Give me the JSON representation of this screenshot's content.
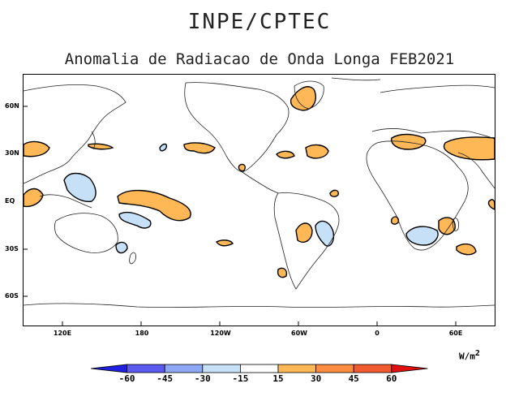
{
  "header": {
    "title": "INPE/CPTEC"
  },
  "map": {
    "title": "Anomalia de Radiacao de Onda Longa FEB2021",
    "lat_labels": [
      "60N",
      "30N",
      "EQ",
      "30S",
      "60S"
    ],
    "lon_labels": [
      "120E",
      "180",
      "120W",
      "60W",
      "0",
      "60E"
    ]
  },
  "legend": {
    "units_base": "W/m",
    "units_exp": "2",
    "ticks": [
      "-60",
      "-45",
      "-30",
      "-15",
      "15",
      "30",
      "45",
      "60"
    ],
    "colors": [
      "#2020e0",
      "#5a5af0",
      "#8fa8f5",
      "#c6e0f8",
      "#ffffff",
      "#ffb855",
      "#ff8c40",
      "#f25a30",
      "#e01010"
    ]
  }
}
